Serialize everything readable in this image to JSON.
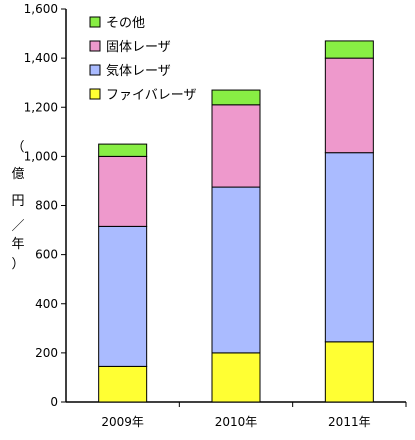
{
  "chart_data": {
    "type": "bar",
    "stacked": true,
    "categories": [
      "2009年",
      "2010年",
      "2011年"
    ],
    "series": [
      {
        "name": "ファイバレーザ",
        "color": "#ffff33",
        "values": [
          145,
          200,
          245
        ]
      },
      {
        "name": "気体レーザ",
        "color": "#aabbff",
        "values": [
          570,
          675,
          770
        ]
      },
      {
        "name": "固体レーザ",
        "color": "#ee99cc",
        "values": [
          285,
          335,
          385
        ]
      },
      {
        "name": "その他",
        "color": "#88ee44",
        "values": [
          50,
          60,
          70
        ]
      }
    ],
    "ylabel_chars": [
      "（",
      "億",
      "円",
      "／",
      "年",
      "）"
    ],
    "ylim": [
      0,
      1600
    ],
    "yticks": [
      "0",
      "200",
      "400",
      "600",
      "800",
      "1,000",
      "1,200",
      "1,400",
      "1,600"
    ],
    "yticks_values": [
      0,
      200,
      400,
      600,
      800,
      1000,
      1200,
      1400,
      1600
    ],
    "legend_order": [
      3,
      2,
      1,
      0
    ],
    "legend_position": "top-left",
    "grid": false
  }
}
